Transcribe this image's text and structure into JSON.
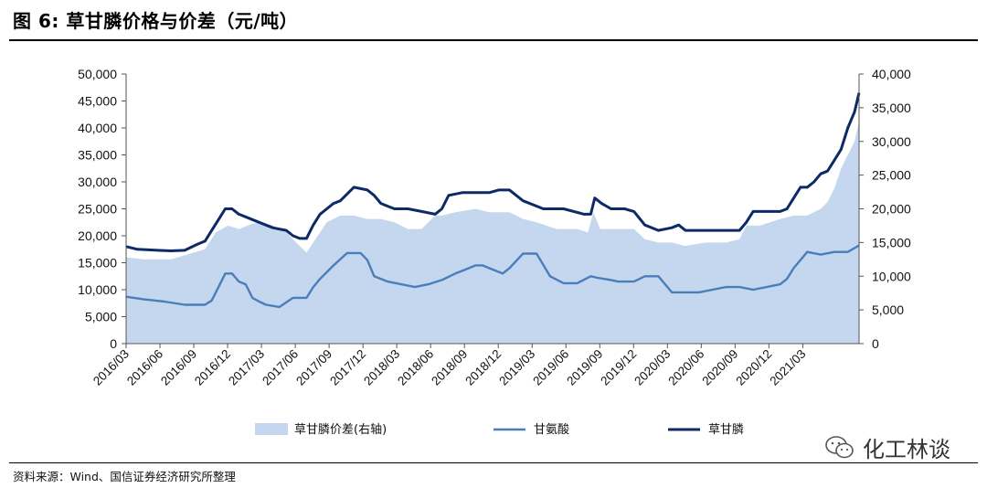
{
  "header": {
    "title": "图 6:  草甘膦价格与价差（元/吨）"
  },
  "footer": {
    "source": "资料来源：Wind、国信证券经济研究所整理"
  },
  "watermark": {
    "text": "化工林谈",
    "icon": "wechat-icon"
  },
  "chart_data": {
    "type": "line",
    "title": "草甘膦价格与价差（元/吨）",
    "left_axis": {
      "min": 0,
      "max": 50000,
      "step": 5000,
      "ticks": [
        "0",
        "5,000",
        "10,000",
        "15,000",
        "20,000",
        "25,000",
        "30,000",
        "35,000",
        "40,000",
        "45,000",
        "50,000"
      ]
    },
    "right_axis": {
      "min": 0,
      "max": 40000,
      "step": 5000,
      "ticks": [
        "0",
        "5,000",
        "10,000",
        "15,000",
        "20,000",
        "25,000",
        "30,000",
        "35,000",
        "40,000"
      ]
    },
    "x_range": [
      2016.167,
      2021.583
    ],
    "x_ticks": [
      "2016/03",
      "2016/06",
      "2016/09",
      "2016/12",
      "2017/03",
      "2017/06",
      "2017/09",
      "2017/12",
      "2018/03",
      "2018/06",
      "2018/09",
      "2018/12",
      "2019/03",
      "2019/06",
      "2019/09",
      "2019/12",
      "2020/03",
      "2020/06",
      "2020/09",
      "2020/12",
      "2021/03"
    ],
    "series": [
      {
        "name": "草甘膦价差(右轴)",
        "axis": "right",
        "kind": "area",
        "color": "#c5d7ee",
        "x": [
          2016.167,
          2016.3,
          2016.5,
          2016.75,
          2016.83,
          2016.92,
          2017.0,
          2017.1,
          2017.17,
          2017.25,
          2017.35,
          2017.45,
          2017.5,
          2017.6,
          2017.65,
          2017.75,
          2017.85,
          2017.95,
          2018.05,
          2018.15,
          2018.25,
          2018.35,
          2018.45,
          2018.5,
          2018.6,
          2018.75,
          2018.85,
          2018.92,
          2019.0,
          2019.1,
          2019.2,
          2019.35,
          2019.5,
          2019.58,
          2019.62,
          2019.67,
          2019.75,
          2019.85,
          2019.92,
          2020.0,
          2020.1,
          2020.2,
          2020.3,
          2020.45,
          2020.6,
          2020.7,
          2020.75,
          2020.85,
          2021.0,
          2021.1,
          2021.2,
          2021.3,
          2021.35,
          2021.4,
          2021.45,
          2021.5,
          2021.55,
          2021.583
        ],
        "values": [
          12800,
          12500,
          12500,
          14000,
          16500,
          17500,
          17000,
          17800,
          18000,
          17500,
          16500,
          14500,
          13500,
          16500,
          18000,
          19000,
          19000,
          18500,
          18500,
          18000,
          17000,
          17000,
          19000,
          19000,
          19500,
          20000,
          19500,
          19500,
          19500,
          18500,
          18000,
          17000,
          17000,
          16500,
          19500,
          17000,
          17000,
          17000,
          17000,
          15500,
          15000,
          15000,
          14500,
          15000,
          15000,
          15500,
          17500,
          17500,
          18500,
          19000,
          19000,
          20000,
          21000,
          23000,
          26000,
          28000,
          30000,
          33000
        ]
      },
      {
        "name": "甘氨酸",
        "axis": "left",
        "kind": "line",
        "color": "#4a7ebb",
        "x": [
          2016.167,
          2016.3,
          2016.45,
          2016.6,
          2016.75,
          2016.8,
          2016.85,
          2016.9,
          2016.95,
          2017.0,
          2017.05,
          2017.1,
          2017.15,
          2017.2,
          2017.3,
          2017.4,
          2017.45,
          2017.5,
          2017.55,
          2017.6,
          2017.7,
          2017.8,
          2017.9,
          2017.95,
          2018.0,
          2018.1,
          2018.2,
          2018.3,
          2018.4,
          2018.5,
          2018.6,
          2018.7,
          2018.75,
          2018.8,
          2018.9,
          2018.95,
          2019.0,
          2019.1,
          2019.2,
          2019.3,
          2019.4,
          2019.5,
          2019.6,
          2019.65,
          2019.7,
          2019.75,
          2019.8,
          2019.85,
          2019.92,
          2020.0,
          2020.1,
          2020.2,
          2020.3,
          2020.4,
          2020.5,
          2020.6,
          2020.7,
          2020.8,
          2020.9,
          2021.0,
          2021.05,
          2021.1,
          2021.2,
          2021.3,
          2021.4,
          2021.5,
          2021.583
        ],
        "values": [
          8700,
          8200,
          7800,
          7200,
          7200,
          8000,
          10500,
          13000,
          13000,
          11500,
          11000,
          8500,
          7800,
          7200,
          6800,
          8500,
          8500,
          8500,
          10500,
          12000,
          14500,
          16800,
          16800,
          15500,
          12500,
          11500,
          11000,
          10500,
          11000,
          11800,
          13000,
          14000,
          14500,
          14500,
          13500,
          13000,
          14000,
          16700,
          16700,
          12500,
          11200,
          11200,
          12500,
          12200,
          12000,
          11800,
          11500,
          11500,
          11500,
          12500,
          12500,
          9500,
          9500,
          9500,
          10000,
          10500,
          10500,
          10000,
          10500,
          11000,
          12000,
          14000,
          17000,
          16500,
          17000,
          17000,
          18200
        ]
      },
      {
        "name": "草甘膦",
        "axis": "left",
        "kind": "line",
        "color": "#0d2a66",
        "x": [
          2016.167,
          2016.25,
          2016.4,
          2016.5,
          2016.6,
          2016.7,
          2016.75,
          2016.8,
          2016.85,
          2016.9,
          2016.95,
          2017.0,
          2017.05,
          2017.15,
          2017.25,
          2017.35,
          2017.4,
          2017.45,
          2017.5,
          2017.55,
          2017.6,
          2017.65,
          2017.7,
          2017.75,
          2017.85,
          2017.95,
          2018.0,
          2018.05,
          2018.1,
          2018.15,
          2018.25,
          2018.35,
          2018.45,
          2018.5,
          2018.55,
          2018.65,
          2018.75,
          2018.85,
          2018.92,
          2019.0,
          2019.1,
          2019.25,
          2019.4,
          2019.55,
          2019.6,
          2019.63,
          2019.68,
          2019.75,
          2019.85,
          2019.92,
          2020.0,
          2020.1,
          2020.2,
          2020.25,
          2020.3,
          2020.4,
          2020.5,
          2020.6,
          2020.7,
          2020.75,
          2020.8,
          2020.9,
          2021.0,
          2021.05,
          2021.1,
          2021.15,
          2021.2,
          2021.25,
          2021.3,
          2021.35,
          2021.4,
          2021.45,
          2021.5,
          2021.55,
          2021.583
        ],
        "values": [
          18000,
          17500,
          17300,
          17200,
          17300,
          18500,
          19000,
          21000,
          23000,
          25000,
          25000,
          24000,
          23500,
          22500,
          21500,
          21000,
          20000,
          19500,
          19500,
          22000,
          24000,
          25000,
          26000,
          26500,
          29000,
          28500,
          27500,
          26000,
          25500,
          25000,
          25000,
          24500,
          24000,
          25000,
          27500,
          28000,
          28000,
          28000,
          28500,
          28500,
          26500,
          25000,
          25000,
          24000,
          24000,
          27000,
          26000,
          25000,
          25000,
          24500,
          22000,
          21000,
          21500,
          22000,
          21000,
          21000,
          21000,
          21000,
          21000,
          22500,
          24500,
          24500,
          24500,
          25000,
          27000,
          29000,
          29000,
          30000,
          31500,
          32000,
          34000,
          36000,
          40000,
          43000,
          46500
        ]
      }
    ],
    "legend": [
      {
        "label": "草甘膦价差(右轴)",
        "kind": "area"
      },
      {
        "label": "甘氨酸",
        "kind": "line"
      },
      {
        "label": "草甘膦",
        "kind": "line"
      }
    ]
  }
}
